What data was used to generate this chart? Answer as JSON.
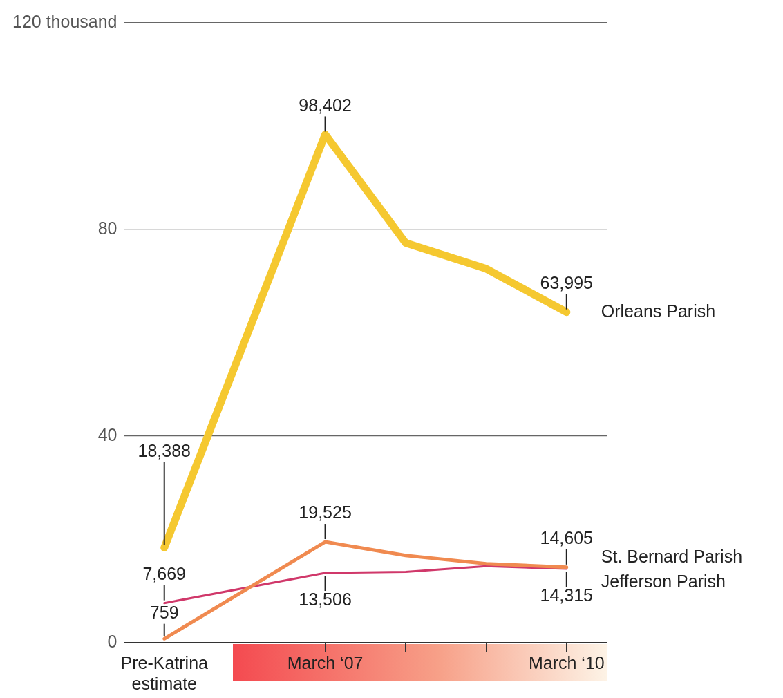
{
  "chart_data": {
    "type": "line",
    "categories": [
      "Pre-Katrina estimate",
      null,
      "March ‘07",
      null,
      null,
      "March ‘10"
    ],
    "series": [
      {
        "name": "Orleans Parish",
        "color": "#f5c830",
        "values": [
          18.388,
          null,
          98.402,
          77.4,
          72.4,
          63.995
        ]
      },
      {
        "name": "St. Bernard Parish",
        "color": "#f08a50",
        "values": [
          0.759,
          null,
          19.525,
          16.9,
          15.3,
          14.605
        ]
      },
      {
        "name": "Jefferson Parish",
        "color": "#d0386a",
        "values": [
          7.669,
          null,
          13.506,
          13.7,
          14.8,
          14.315
        ]
      }
    ],
    "annotations": [
      {
        "text": "18,388",
        "x": "Pre-Katrina estimate",
        "y": 18.388
      },
      {
        "text": "759",
        "x": "Pre-Katrina estimate",
        "y": 0.759
      },
      {
        "text": "7,669",
        "x": "Pre-Katrina estimate",
        "y": 7.669
      },
      {
        "text": "98,402",
        "x": "March ‘07",
        "y": 98.402
      },
      {
        "text": "19,525",
        "x": "March ‘07",
        "y": 19.525
      },
      {
        "text": "13,506",
        "x": "March ‘07",
        "y": 13.506
      },
      {
        "text": "63,995",
        "x": "March ‘10",
        "y": 63.995
      },
      {
        "text": "14,605",
        "x": "March ‘10",
        "y": 14.605
      },
      {
        "text": "14,315",
        "x": "March ‘10",
        "y": 14.315
      }
    ],
    "ylim": [
      0,
      120
    ],
    "yticks": [
      0,
      40,
      80,
      {
        "value": 120,
        "label": "120 thousand"
      }
    ],
    "grid": "y",
    "legend": false,
    "marker": "none",
    "line_style": "solid"
  }
}
